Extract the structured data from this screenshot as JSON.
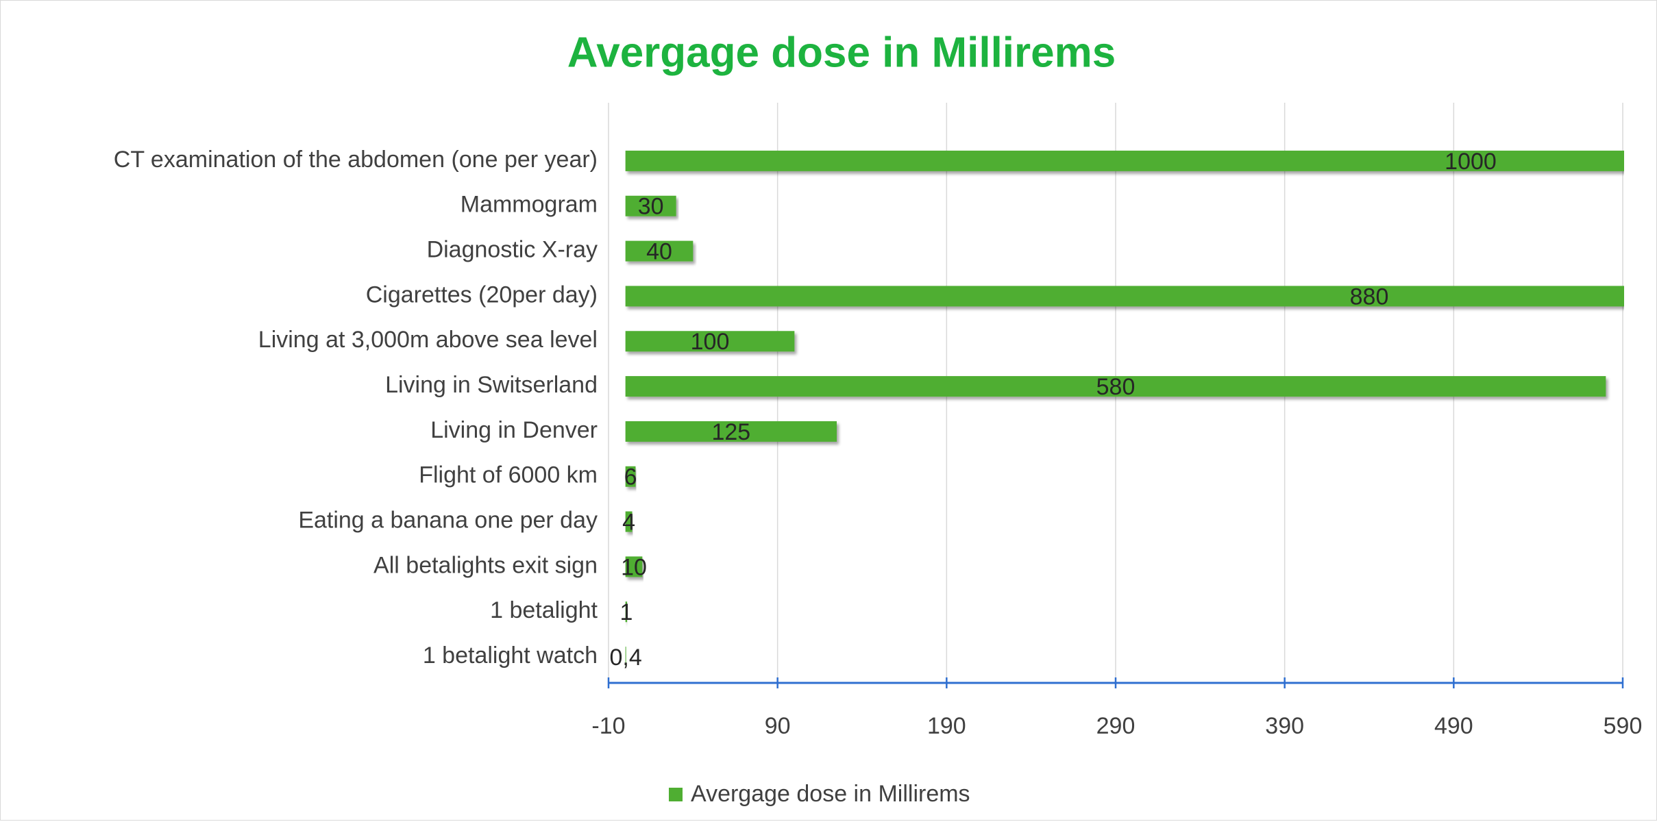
{
  "chart_data": {
    "type": "bar",
    "orientation": "horizontal",
    "title": "Avergage dose in Millirems",
    "categories": [
      "CT examination of the abdomen (one per year)",
      "Mammogram",
      "Diagnostic X-ray",
      "Cigarettes (20per day)",
      "Living at 3,000m above sea level",
      "Living in Switserland",
      "Living in Denver",
      "Flight of 6000 km",
      "Eating a banana one per day",
      "All betalights exit sign",
      "1 betalight",
      "1 betalight watch"
    ],
    "series": [
      {
        "name": "Avergage dose in Millirems",
        "color": "#4fae32",
        "values": [
          1000,
          30,
          40,
          880,
          100,
          580,
          125,
          6,
          4,
          10,
          1,
          0.4
        ],
        "value_labels": [
          "1000",
          "30",
          "40",
          "880",
          "100",
          "580",
          "125",
          "6",
          "4",
          "10",
          "1",
          "0,4"
        ]
      }
    ],
    "xlim": [
      -10,
      590
    ],
    "xticks": [
      -10,
      90,
      190,
      290,
      390,
      490,
      590
    ],
    "grid": true,
    "legend": "bottom"
  }
}
